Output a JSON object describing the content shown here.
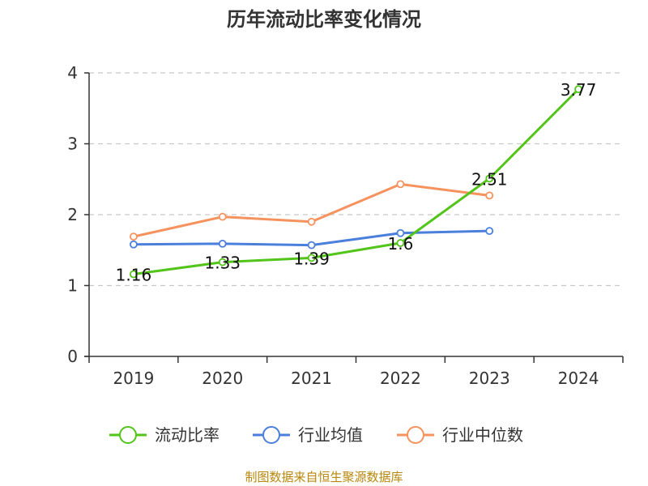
{
  "chart_data": {
    "type": "line",
    "title": "历年流动比率变化情况",
    "categories": [
      "2019",
      "2020",
      "2021",
      "2022",
      "2023",
      "2024"
    ],
    "ylim": [
      0,
      4
    ],
    "yticks": [
      "0",
      "1",
      "2",
      "3",
      "4"
    ],
    "series": [
      {
        "name": "流动比率",
        "color": "#52c41a",
        "values": [
          1.16,
          1.33,
          1.39,
          1.6,
          2.51,
          3.77
        ],
        "labels": [
          "1.16",
          "1.33",
          "1.39",
          "1.6",
          "2.51",
          "3.77"
        ]
      },
      {
        "name": "行业均值",
        "color": "#4a7fdb",
        "values": [
          1.58,
          1.59,
          1.57,
          1.74,
          1.77,
          null
        ]
      },
      {
        "name": "行业中位数",
        "color": "#f5925e",
        "values": [
          1.69,
          1.97,
          1.9,
          2.43,
          2.27,
          null
        ]
      }
    ],
    "grid": true,
    "legend": "bottom"
  },
  "source": "制图数据来自恒生聚源数据库"
}
